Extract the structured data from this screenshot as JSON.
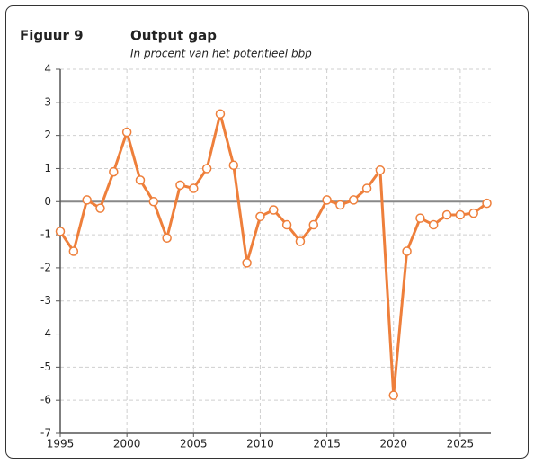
{
  "chart_data": {
    "type": "line",
    "figure_label": "Figuur 9",
    "title": "Output gap",
    "subtitle": "In procent van het potentieel bbp",
    "x": [
      1995,
      1996,
      1997,
      1998,
      1999,
      2000,
      2001,
      2002,
      2003,
      2004,
      2005,
      2006,
      2007,
      2008,
      2009,
      2010,
      2011,
      2012,
      2013,
      2014,
      2015,
      2016,
      2017,
      2018,
      2019,
      2020,
      2021,
      2022,
      2023,
      2024,
      2025,
      2026,
      2027
    ],
    "series": [
      {
        "name": "Output gap",
        "color": "#ee7f3b",
        "values": [
          -0.9,
          -1.5,
          0.05,
          -0.2,
          0.9,
          2.1,
          0.65,
          0.0,
          -1.1,
          0.5,
          0.4,
          1.0,
          2.65,
          1.1,
          -1.85,
          -0.45,
          -0.25,
          -0.7,
          -1.2,
          -0.7,
          0.05,
          -0.1,
          0.05,
          0.4,
          0.95,
          -5.85,
          -1.5,
          -0.5,
          -0.7,
          -0.4,
          -0.4,
          -0.35,
          -0.05
        ]
      }
    ],
    "xlim": [
      1995,
      2027.3
    ],
    "xticks": [
      1995,
      2000,
      2005,
      2010,
      2015,
      2020,
      2025
    ],
    "ylim": [
      -7,
      4
    ],
    "yticks": [
      -7,
      -6,
      -5,
      -4,
      -3,
      -2,
      -1,
      0,
      1,
      2,
      3,
      4
    ],
    "grid": true
  }
}
